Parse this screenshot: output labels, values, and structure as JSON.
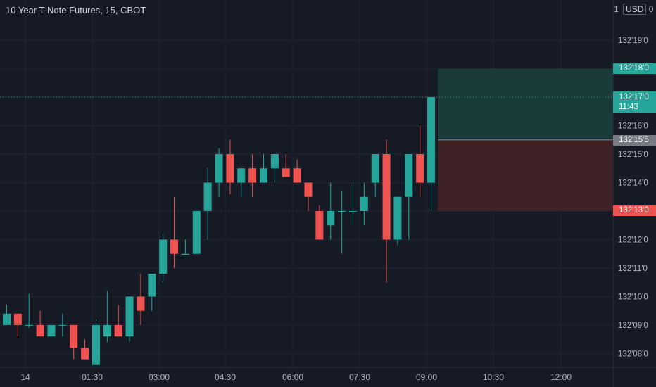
{
  "header": {
    "symbol_title": "10 Year T-Note Futures, 15, CBOT",
    "scale_prefix": "1",
    "currency": "USD",
    "scale_suffix": "0"
  },
  "price_axis": {
    "labels": [
      "132'19'0",
      "132'18'0",
      "132'17'0",
      "132'16'0",
      "132'15'0",
      "132'14'0",
      "132'13'0",
      "132'12'0",
      "132'11'0",
      "132'10'0",
      "132'09'0",
      "132'08'0"
    ]
  },
  "time_axis": {
    "labels": [
      "14",
      "01:30",
      "03:00",
      "04:30",
      "06:00",
      "07:30",
      "09:00",
      "10:30",
      "12:00"
    ]
  },
  "price_tags": {
    "target": "132'18'0",
    "last_price": "132'17'0",
    "countdown": "11:43",
    "entry": "132'15'5",
    "stop": "132'13'0"
  },
  "colors": {
    "background": "#161a25",
    "up": "#26a69a",
    "down": "#ef5350",
    "target_zone": "#1b3b3b",
    "stop_zone": "#3e2226",
    "entry_tag": "#787b86"
  },
  "chart_data": {
    "type": "candlestick",
    "symbol": "10 Year T-Note Futures",
    "interval": "15",
    "exchange": "CBOT",
    "price_unit": "32nds above 132",
    "ylim": [
      7.6,
      20.1
    ],
    "candles": [
      {
        "o": 9.0,
        "h": 9.7,
        "l": 9.0,
        "c": 9.4
      },
      {
        "o": 9.4,
        "h": 9.4,
        "l": 8.6,
        "c": 9.0
      },
      {
        "o": 9.0,
        "h": 10.1,
        "l": 8.9,
        "c": 9.0
      },
      {
        "o": 9.0,
        "h": 9.5,
        "l": 8.6,
        "c": 8.6
      },
      {
        "o": 8.6,
        "h": 9.0,
        "l": 8.6,
        "c": 9.0
      },
      {
        "o": 9.0,
        "h": 9.4,
        "l": 8.6,
        "c": 9.0
      },
      {
        "o": 9.0,
        "h": 9.0,
        "l": 7.8,
        "c": 8.2
      },
      {
        "o": 8.2,
        "h": 8.5,
        "l": 7.8,
        "c": 7.8
      },
      {
        "o": 7.6,
        "h": 9.2,
        "l": 7.6,
        "c": 9.0
      },
      {
        "o": 8.6,
        "h": 10.2,
        "l": 8.4,
        "c": 9.0
      },
      {
        "o": 9.0,
        "h": 9.7,
        "l": 8.6,
        "c": 8.6
      },
      {
        "o": 8.6,
        "h": 10.0,
        "l": 8.4,
        "c": 10.0
      },
      {
        "o": 10.0,
        "h": 10.8,
        "l": 9.0,
        "c": 9.5
      },
      {
        "o": 10.0,
        "h": 10.8,
        "l": 9.5,
        "c": 10.8
      },
      {
        "o": 10.8,
        "h": 12.2,
        "l": 10.5,
        "c": 12.0
      },
      {
        "o": 12.0,
        "h": 13.5,
        "l": 11.0,
        "c": 11.5
      },
      {
        "o": 11.5,
        "h": 12.0,
        "l": 11.5,
        "c": 11.5
      },
      {
        "o": 11.5,
        "h": 13.0,
        "l": 11.5,
        "c": 13.0
      },
      {
        "o": 13.0,
        "h": 14.5,
        "l": 12.0,
        "c": 14.0
      },
      {
        "o": 14.0,
        "h": 15.2,
        "l": 13.5,
        "c": 15.0
      },
      {
        "o": 15.0,
        "h": 15.5,
        "l": 13.6,
        "c": 14.0
      },
      {
        "o": 14.0,
        "h": 14.5,
        "l": 13.5,
        "c": 14.5
      },
      {
        "o": 14.5,
        "h": 15.0,
        "l": 13.5,
        "c": 14.0
      },
      {
        "o": 14.0,
        "h": 15.0,
        "l": 14.0,
        "c": 14.5
      },
      {
        "o": 14.5,
        "h": 15.0,
        "l": 14.0,
        "c": 15.0
      },
      {
        "o": 14.5,
        "h": 15.0,
        "l": 14.2,
        "c": 14.2
      },
      {
        "o": 14.5,
        "h": 14.8,
        "l": 14.0,
        "c": 14.0
      },
      {
        "o": 14.0,
        "h": 14.0,
        "l": 13.0,
        "c": 13.5
      },
      {
        "o": 13.0,
        "h": 13.2,
        "l": 12.0,
        "c": 12.0
      },
      {
        "o": 12.5,
        "h": 14.0,
        "l": 12.0,
        "c": 13.0
      },
      {
        "o": 13.0,
        "h": 13.7,
        "l": 11.5,
        "c": 13.0
      },
      {
        "o": 13.0,
        "h": 14.0,
        "l": 12.5,
        "c": 13.0
      },
      {
        "o": 13.0,
        "h": 14.0,
        "l": 12.5,
        "c": 13.5
      },
      {
        "o": 14.0,
        "h": 15.0,
        "l": 13.5,
        "c": 15.0
      },
      {
        "o": 15.0,
        "h": 15.5,
        "l": 10.5,
        "c": 12.0
      },
      {
        "o": 12.0,
        "h": 13.5,
        "l": 11.8,
        "c": 13.5
      },
      {
        "o": 13.5,
        "h": 15.0,
        "l": 12.0,
        "c": 15.0
      },
      {
        "o": 15.0,
        "h": 16.0,
        "l": 13.5,
        "c": 14.0
      },
      {
        "o": 14.0,
        "h": 17.0,
        "l": 13.0,
        "c": 17.0
      }
    ],
    "position": {
      "entry": 15.5,
      "target": 18.0,
      "stop": 13.0
    }
  }
}
